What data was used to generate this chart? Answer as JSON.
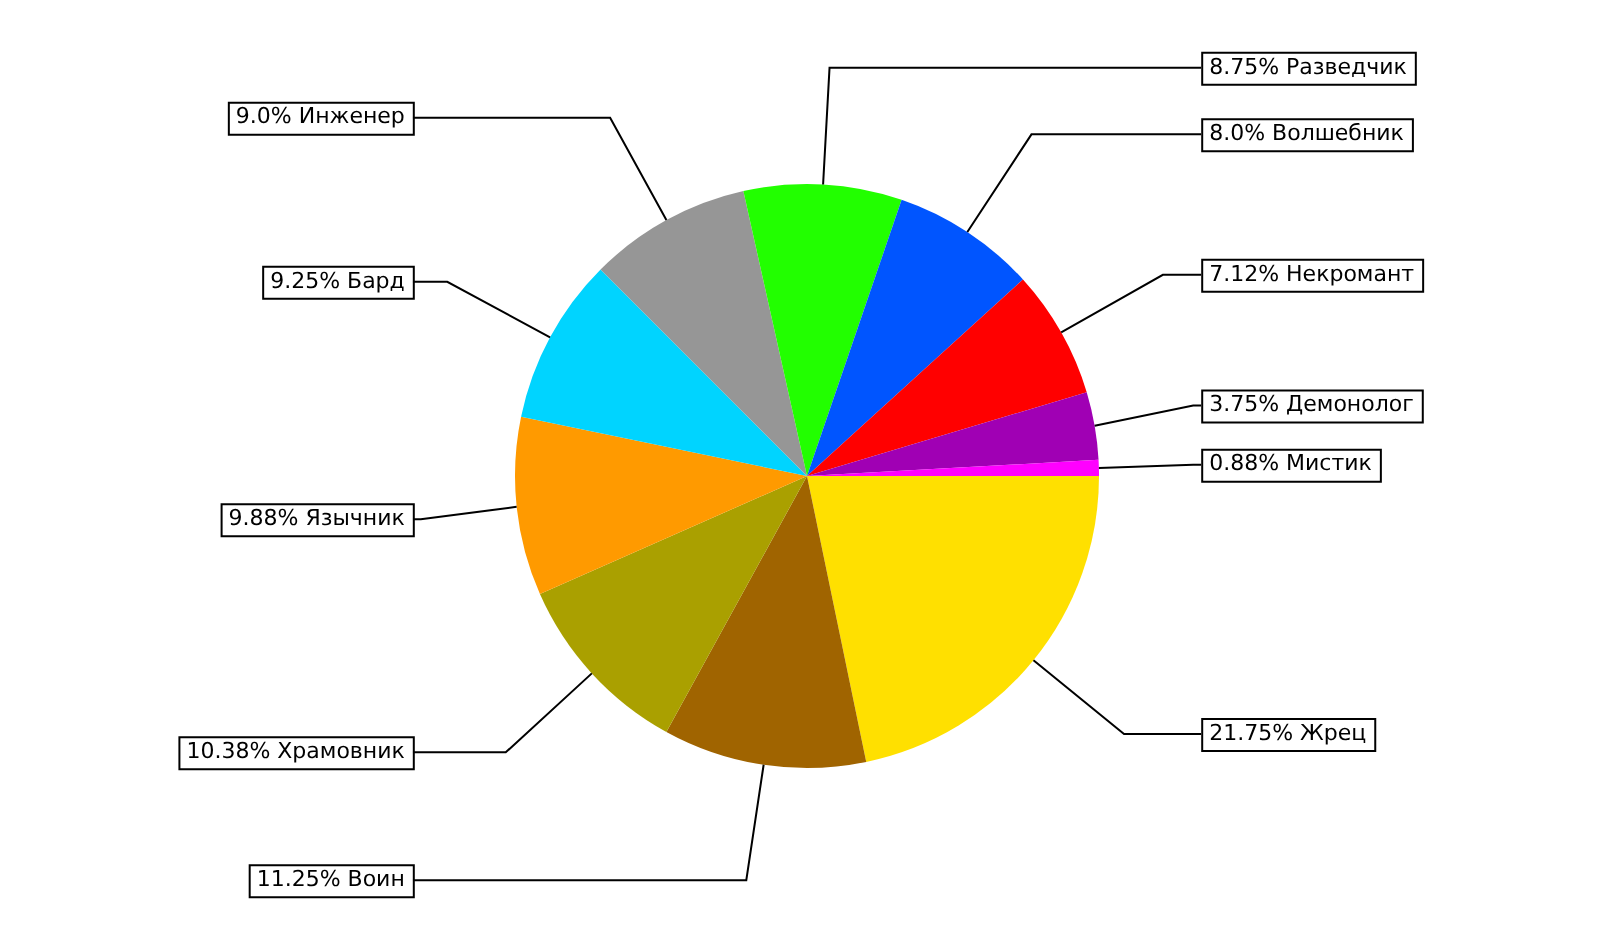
{
  "chart_data": {
    "type": "pie",
    "categories": [
      "Жрец",
      "Воин",
      "Храмовник",
      "Язычник",
      "Бард",
      "Инженер",
      "Разведчик",
      "Волшебник",
      "Некромант",
      "Демонолог",
      "Мистик"
    ],
    "values": [
      21.75,
      11.25,
      10.38,
      9.88,
      9.25,
      9.0,
      8.75,
      8.0,
      7.12,
      3.75,
      0.88
    ],
    "value_labels": [
      "21.75%",
      "11.25%",
      "10.38%",
      "9.88%",
      "9.25%",
      "9.0%",
      "8.75%",
      "8.0%",
      "7.12%",
      "3.75%",
      "0.88%"
    ],
    "colors": [
      "#ffe000",
      "#a06400",
      "#aaa000",
      "#ff9a00",
      "#00d4ff",
      "#969696",
      "#22ff00",
      "#0055ff",
      "#ff0000",
      "#a000b4",
      "#ff00ff"
    ],
    "legend": false
  }
}
